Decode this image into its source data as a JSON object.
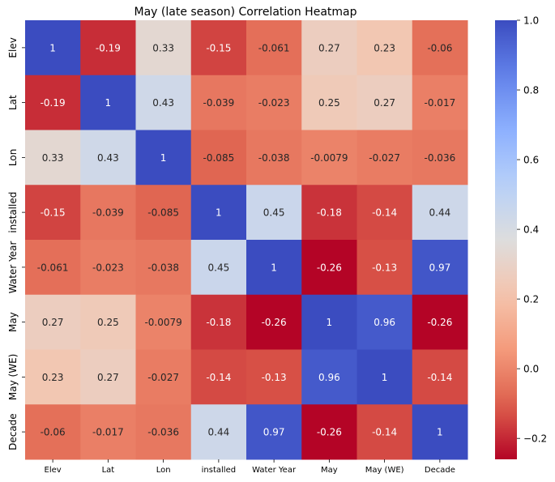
{
  "chart_data": {
    "type": "heatmap",
    "title": "May (late season) Correlation Heatmap",
    "x_labels": [
      "Elev",
      "Lat",
      "Lon",
      "installed",
      "Water Year",
      "May",
      "May (WE)",
      "Decade"
    ],
    "y_labels": [
      "Elev",
      "Lat",
      "Lon",
      "installed",
      "Water Year",
      "May",
      "May (WE)",
      "Decade"
    ],
    "values": [
      [
        1,
        -0.19,
        0.33,
        -0.15,
        -0.061,
        0.27,
        0.23,
        -0.06
      ],
      [
        -0.19,
        1,
        0.43,
        -0.039,
        -0.023,
        0.25,
        0.27,
        -0.017
      ],
      [
        0.33,
        0.43,
        1,
        -0.085,
        -0.038,
        -0.0079,
        -0.027,
        -0.036
      ],
      [
        -0.15,
        -0.039,
        -0.085,
        1,
        0.45,
        -0.18,
        -0.14,
        0.44
      ],
      [
        -0.061,
        -0.023,
        -0.038,
        0.45,
        1,
        -0.26,
        -0.13,
        0.97
      ],
      [
        0.27,
        0.25,
        -0.0079,
        -0.18,
        -0.26,
        1,
        0.96,
        -0.26
      ],
      [
        0.23,
        0.27,
        -0.027,
        -0.14,
        -0.13,
        0.96,
        1,
        -0.14
      ],
      [
        -0.06,
        -0.017,
        -0.036,
        0.44,
        0.97,
        -0.26,
        -0.14,
        1
      ]
    ],
    "colormap": "coolwarm",
    "vmin": -0.26,
    "vmax": 1.0,
    "colorbar_ticks": [
      1.0,
      0.8,
      0.6,
      0.4,
      0.2,
      0.0,
      -0.2
    ],
    "colorbar_tick_labels": [
      "1.0",
      "0.8",
      "0.6",
      "0.4",
      "0.2",
      "0.0",
      "−0.2"
    ]
  }
}
